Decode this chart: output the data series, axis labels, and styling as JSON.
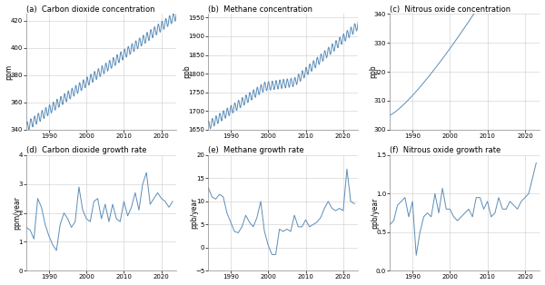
{
  "fig_width": 6.0,
  "fig_height": 3.14,
  "dpi": 100,
  "background_color": "#ffffff",
  "line_color": "#5b8db8",
  "line_width": 0.7,
  "panels": [
    {
      "label": "(a)",
      "title": "Carbon dioxide concentration",
      "ylabel": "ppm",
      "ylim": [
        340,
        425
      ],
      "yticks": [
        340,
        360,
        380,
        400,
        420
      ],
      "xlim": [
        1984,
        2024
      ],
      "xticks": [
        1990,
        2000,
        2010,
        2020
      ],
      "row": 0,
      "col": 0,
      "data_key": "co2_conc"
    },
    {
      "label": "(b)",
      "title": "Methane concentration",
      "ylabel": "ppb",
      "ylim": [
        1650,
        1960
      ],
      "yticks": [
        1650,
        1700,
        1750,
        1800,
        1850,
        1900,
        1950
      ],
      "xlim": [
        1984,
        2024
      ],
      "xticks": [
        1990,
        2000,
        2010,
        2020
      ],
      "row": 0,
      "col": 1,
      "data_key": "ch4_conc"
    },
    {
      "label": "(c)",
      "title": "Nitrous oxide concentration",
      "ylabel": "ppb",
      "ylim": [
        300,
        340
      ],
      "yticks": [
        300,
        310,
        320,
        330,
        340
      ],
      "xlim": [
        1984,
        2024
      ],
      "xticks": [
        1990,
        2000,
        2010,
        2020
      ],
      "row": 0,
      "col": 2,
      "data_key": "n2o_conc"
    },
    {
      "label": "(d)",
      "title": "Carbon dioxide growth rate",
      "ylabel": "ppm/year",
      "ylim": [
        0,
        4
      ],
      "yticks": [
        0,
        1,
        2,
        3,
        4
      ],
      "xlim": [
        1984,
        2024
      ],
      "xticks": [
        1990,
        2000,
        2010,
        2020
      ],
      "row": 1,
      "col": 0,
      "data_key": "co2_rate"
    },
    {
      "label": "(e)",
      "title": "Methane growth rate",
      "ylabel": "ppb/year",
      "ylim": [
        -5,
        20
      ],
      "yticks": [
        -5,
        0,
        5,
        10,
        15,
        20
      ],
      "xlim": [
        1984,
        2024
      ],
      "xticks": [
        1990,
        2000,
        2010,
        2020
      ],
      "row": 1,
      "col": 1,
      "data_key": "ch4_rate"
    },
    {
      "label": "(f)",
      "title": "Nitrous oxide growth rate",
      "ylabel": "ppb/year",
      "ylim": [
        0.0,
        1.5
      ],
      "yticks": [
        0.0,
        0.5,
        1.0,
        1.5
      ],
      "xlim": [
        1984,
        2024
      ],
      "xticks": [
        1990,
        2000,
        2010,
        2020
      ],
      "row": 1,
      "col": 2,
      "data_key": "n2o_rate"
    }
  ],
  "co2_rate": [
    1984,
    1985,
    1986,
    1987,
    1988,
    1989,
    1990,
    1991,
    1992,
    1993,
    1994,
    1995,
    1996,
    1997,
    1998,
    1999,
    2000,
    2001,
    2002,
    2003,
    2004,
    2005,
    2006,
    2007,
    2008,
    2009,
    2010,
    2011,
    2012,
    2013,
    2014,
    2015,
    2016,
    2017,
    2018,
    2019,
    2020,
    2021,
    2022,
    2023
  ],
  "co2_rate_v": [
    1.5,
    1.4,
    1.1,
    2.5,
    2.2,
    1.6,
    1.2,
    0.9,
    0.7,
    1.6,
    2.0,
    1.8,
    1.5,
    1.7,
    2.9,
    2.1,
    1.8,
    1.7,
    2.4,
    2.5,
    1.8,
    2.3,
    1.7,
    2.3,
    1.8,
    1.7,
    2.4,
    1.9,
    2.2,
    2.7,
    2.1,
    3.0,
    3.4,
    2.3,
    2.5,
    2.7,
    2.5,
    2.4,
    2.2,
    2.4
  ],
  "ch4_rate": [
    1984,
    1985,
    1986,
    1987,
    1988,
    1989,
    1990,
    1991,
    1992,
    1993,
    1994,
    1995,
    1996,
    1997,
    1998,
    1999,
    2000,
    2001,
    2002,
    2003,
    2004,
    2005,
    2006,
    2007,
    2008,
    2009,
    2010,
    2011,
    2012,
    2013,
    2014,
    2015,
    2016,
    2017,
    2018,
    2019,
    2020,
    2021,
    2022,
    2023
  ],
  "ch4_rate_v": [
    13.0,
    11.0,
    10.5,
    11.5,
    11.0,
    7.5,
    5.5,
    3.5,
    3.2,
    4.5,
    7.0,
    5.5,
    4.5,
    6.5,
    10.0,
    3.5,
    0.5,
    -1.5,
    -1.5,
    4.0,
    3.5,
    4.0,
    3.5,
    7.0,
    4.5,
    4.5,
    6.0,
    4.5,
    5.0,
    5.5,
    6.5,
    8.5,
    10.0,
    8.5,
    8.0,
    8.5,
    8.0,
    17.0,
    10.0,
    9.5
  ],
  "n2o_rate": [
    1984,
    1985,
    1986,
    1987,
    1988,
    1989,
    1990,
    1991,
    1992,
    1993,
    1994,
    1995,
    1996,
    1997,
    1998,
    1999,
    2000,
    2001,
    2002,
    2003,
    2004,
    2005,
    2006,
    2007,
    2008,
    2009,
    2010,
    2011,
    2012,
    2013,
    2014,
    2015,
    2016,
    2017,
    2018,
    2019,
    2020,
    2021,
    2022,
    2023
  ],
  "n2o_rate_v": [
    0.6,
    0.65,
    0.85,
    0.9,
    0.95,
    0.7,
    0.9,
    0.2,
    0.5,
    0.7,
    0.75,
    0.7,
    1.0,
    0.75,
    1.07,
    0.8,
    0.8,
    0.7,
    0.65,
    0.7,
    0.75,
    0.8,
    0.7,
    0.95,
    0.95,
    0.8,
    0.9,
    0.7,
    0.75,
    0.95,
    0.8,
    0.8,
    0.9,
    0.85,
    0.8,
    0.9,
    0.95,
    1.0,
    1.2,
    1.4
  ]
}
